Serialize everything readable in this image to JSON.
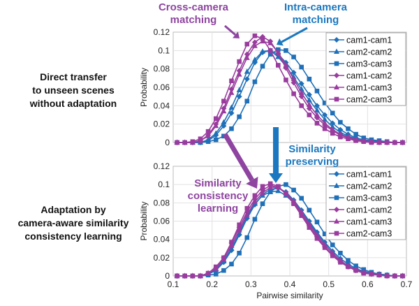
{
  "colors": {
    "intra": "#1f70b8",
    "cross": "#9a3c9e",
    "annot_cross": "#8e44a0",
    "annot_intra": "#1b78c0"
  },
  "side_labels": {
    "top": [
      "Direct transfer",
      "to unseen scenes",
      "without adaptation"
    ],
    "bottom": [
      "Adaptation by",
      "camera-aware similarity",
      "consistency learning"
    ]
  },
  "annotations": {
    "cross": [
      "Cross-camera",
      "matching"
    ],
    "intra": [
      "Intra-camera",
      "matching"
    ],
    "preserving": [
      "Similarity",
      "preserving"
    ],
    "consistency": [
      "Similarity",
      "consistency",
      "learning"
    ]
  },
  "chart_data": [
    {
      "type": "line",
      "ylabel": "Probability",
      "xlabel": "",
      "xlim": [
        0.1,
        0.7
      ],
      "ylim": [
        0,
        0.12
      ],
      "yticks": [
        "0",
        "0.02",
        "0.04",
        "0.06",
        "0.08",
        "0.1",
        "0.12"
      ],
      "grid": true,
      "legend": "top-right",
      "x": [
        0.11,
        0.13,
        0.15,
        0.17,
        0.19,
        0.21,
        0.23,
        0.25,
        0.27,
        0.29,
        0.31,
        0.33,
        0.35,
        0.37,
        0.39,
        0.41,
        0.43,
        0.45,
        0.47,
        0.49,
        0.51,
        0.53,
        0.55,
        0.57,
        0.59,
        0.61,
        0.63,
        0.65,
        0.67,
        0.69
      ],
      "series": [
        {
          "name": "cam1-cam1",
          "group": "intra",
          "marker": "diamond",
          "values": [
            0,
            0,
            0,
            0,
            0.002,
            0.008,
            0.018,
            0.032,
            0.05,
            0.069,
            0.087,
            0.098,
            0.1,
            0.096,
            0.087,
            0.076,
            0.064,
            0.052,
            0.04,
            0.03,
            0.021,
            0.014,
            0.009,
            0.005,
            0.003,
            0.002,
            0.001,
            0,
            0,
            0
          ]
        },
        {
          "name": "cam2-cam2",
          "group": "intra",
          "marker": "triangle",
          "values": [
            0,
            0,
            0,
            0,
            0.003,
            0.01,
            0.022,
            0.038,
            0.057,
            0.077,
            0.09,
            0.099,
            0.1,
            0.093,
            0.083,
            0.071,
            0.058,
            0.046,
            0.035,
            0.025,
            0.017,
            0.011,
            0.007,
            0.004,
            0.002,
            0.001,
            0,
            0,
            0,
            0
          ]
        },
        {
          "name": "cam3-cam3",
          "group": "intra",
          "marker": "square",
          "values": [
            0,
            0,
            0,
            0,
            0.001,
            0.003,
            0.007,
            0.015,
            0.028,
            0.045,
            0.066,
            0.083,
            0.096,
            0.101,
            0.1,
            0.093,
            0.082,
            0.069,
            0.056,
            0.043,
            0.032,
            0.022,
            0.015,
            0.009,
            0.005,
            0.003,
            0.002,
            0.001,
            0,
            0
          ]
        },
        {
          "name": "cam1-cam2",
          "group": "cross",
          "marker": "diamond",
          "values": [
            0,
            0,
            0,
            0.002,
            0.008,
            0.02,
            0.037,
            0.058,
            0.078,
            0.096,
            0.109,
            0.115,
            0.11,
            0.097,
            0.081,
            0.065,
            0.05,
            0.037,
            0.027,
            0.019,
            0.013,
            0.008,
            0.005,
            0.003,
            0.002,
            0.001,
            0,
            0,
            0,
            0
          ]
        },
        {
          "name": "cam1-cam3",
          "group": "cross",
          "marker": "triangle",
          "values": [
            0,
            0,
            0,
            0.002,
            0.007,
            0.018,
            0.034,
            0.054,
            0.074,
            0.092,
            0.105,
            0.11,
            0.108,
            0.098,
            0.084,
            0.069,
            0.054,
            0.041,
            0.03,
            0.021,
            0.014,
            0.009,
            0.006,
            0.003,
            0.002,
            0.001,
            0,
            0,
            0,
            0
          ]
        },
        {
          "name": "cam2-cam3",
          "group": "cross",
          "marker": "square",
          "values": [
            0,
            0,
            0.001,
            0.004,
            0.012,
            0.026,
            0.045,
            0.067,
            0.088,
            0.107,
            0.116,
            0.113,
            0.1,
            0.084,
            0.068,
            0.053,
            0.04,
            0.03,
            0.021,
            0.015,
            0.01,
            0.006,
            0.004,
            0.002,
            0.001,
            0,
            0,
            0,
            0,
            0
          ]
        }
      ]
    },
    {
      "type": "line",
      "ylabel": "Probability",
      "xlabel": "Pairwise similarity",
      "xlim": [
        0.1,
        0.7
      ],
      "ylim": [
        0,
        0.12
      ],
      "xticks": [
        "0.1",
        "0.2",
        "0.3",
        "0.4",
        "0.5",
        "0.6",
        "0.7"
      ],
      "yticks": [
        "0",
        "0.02",
        "0.04",
        "0.06",
        "0.08",
        "0.1",
        "0.12"
      ],
      "grid": true,
      "legend": "top-right",
      "x": [
        0.11,
        0.13,
        0.15,
        0.17,
        0.19,
        0.21,
        0.23,
        0.25,
        0.27,
        0.29,
        0.31,
        0.33,
        0.35,
        0.37,
        0.39,
        0.41,
        0.43,
        0.45,
        0.47,
        0.49,
        0.51,
        0.53,
        0.55,
        0.57,
        0.59,
        0.61,
        0.63,
        0.65,
        0.67,
        0.69
      ],
      "series": [
        {
          "name": "cam1-cam1",
          "group": "intra",
          "marker": "diamond",
          "values": [
            0,
            0,
            0,
            0,
            0.002,
            0.006,
            0.015,
            0.028,
            0.045,
            0.063,
            0.078,
            0.089,
            0.095,
            0.096,
            0.092,
            0.083,
            0.072,
            0.06,
            0.048,
            0.037,
            0.027,
            0.019,
            0.013,
            0.008,
            0.005,
            0.003,
            0.002,
            0.001,
            0,
            0
          ]
        },
        {
          "name": "cam2-cam2",
          "group": "intra",
          "marker": "triangle",
          "values": [
            0,
            0,
            0,
            0,
            0.002,
            0.007,
            0.016,
            0.03,
            0.047,
            0.065,
            0.079,
            0.088,
            0.092,
            0.093,
            0.088,
            0.08,
            0.07,
            0.058,
            0.047,
            0.036,
            0.027,
            0.019,
            0.013,
            0.008,
            0.005,
            0.003,
            0.002,
            0.001,
            0,
            0
          ]
        },
        {
          "name": "cam3-cam3",
          "group": "intra",
          "marker": "square",
          "values": [
            0,
            0,
            0,
            0,
            0.001,
            0.002,
            0.006,
            0.013,
            0.025,
            0.042,
            0.062,
            0.079,
            0.092,
            0.098,
            0.1,
            0.094,
            0.085,
            0.072,
            0.059,
            0.046,
            0.034,
            0.025,
            0.017,
            0.011,
            0.007,
            0.004,
            0.002,
            0.001,
            0,
            0
          ]
        },
        {
          "name": "cam1-cam2",
          "group": "cross",
          "marker": "diamond",
          "values": [
            0,
            0,
            0,
            0,
            0.003,
            0.009,
            0.02,
            0.036,
            0.053,
            0.07,
            0.084,
            0.094,
            0.099,
            0.097,
            0.09,
            0.08,
            0.068,
            0.055,
            0.043,
            0.032,
            0.023,
            0.016,
            0.01,
            0.006,
            0.004,
            0.002,
            0.001,
            0,
            0,
            0
          ]
        },
        {
          "name": "cam1-cam3",
          "group": "cross",
          "marker": "triangle",
          "values": [
            0,
            0,
            0,
            0,
            0.003,
            0.008,
            0.018,
            0.033,
            0.05,
            0.067,
            0.081,
            0.091,
            0.097,
            0.097,
            0.091,
            0.082,
            0.07,
            0.057,
            0.045,
            0.034,
            0.025,
            0.017,
            0.011,
            0.007,
            0.004,
            0.002,
            0.001,
            0,
            0,
            0
          ]
        },
        {
          "name": "cam2-cam3",
          "group": "cross",
          "marker": "square",
          "values": [
            0,
            0,
            0,
            0,
            0.003,
            0.01,
            0.02,
            0.037,
            0.056,
            0.074,
            0.088,
            0.098,
            0.101,
            0.098,
            0.09,
            0.079,
            0.066,
            0.053,
            0.041,
            0.031,
            0.022,
            0.015,
            0.01,
            0.006,
            0.003,
            0.002,
            0.001,
            0,
            0,
            0
          ]
        }
      ]
    }
  ]
}
